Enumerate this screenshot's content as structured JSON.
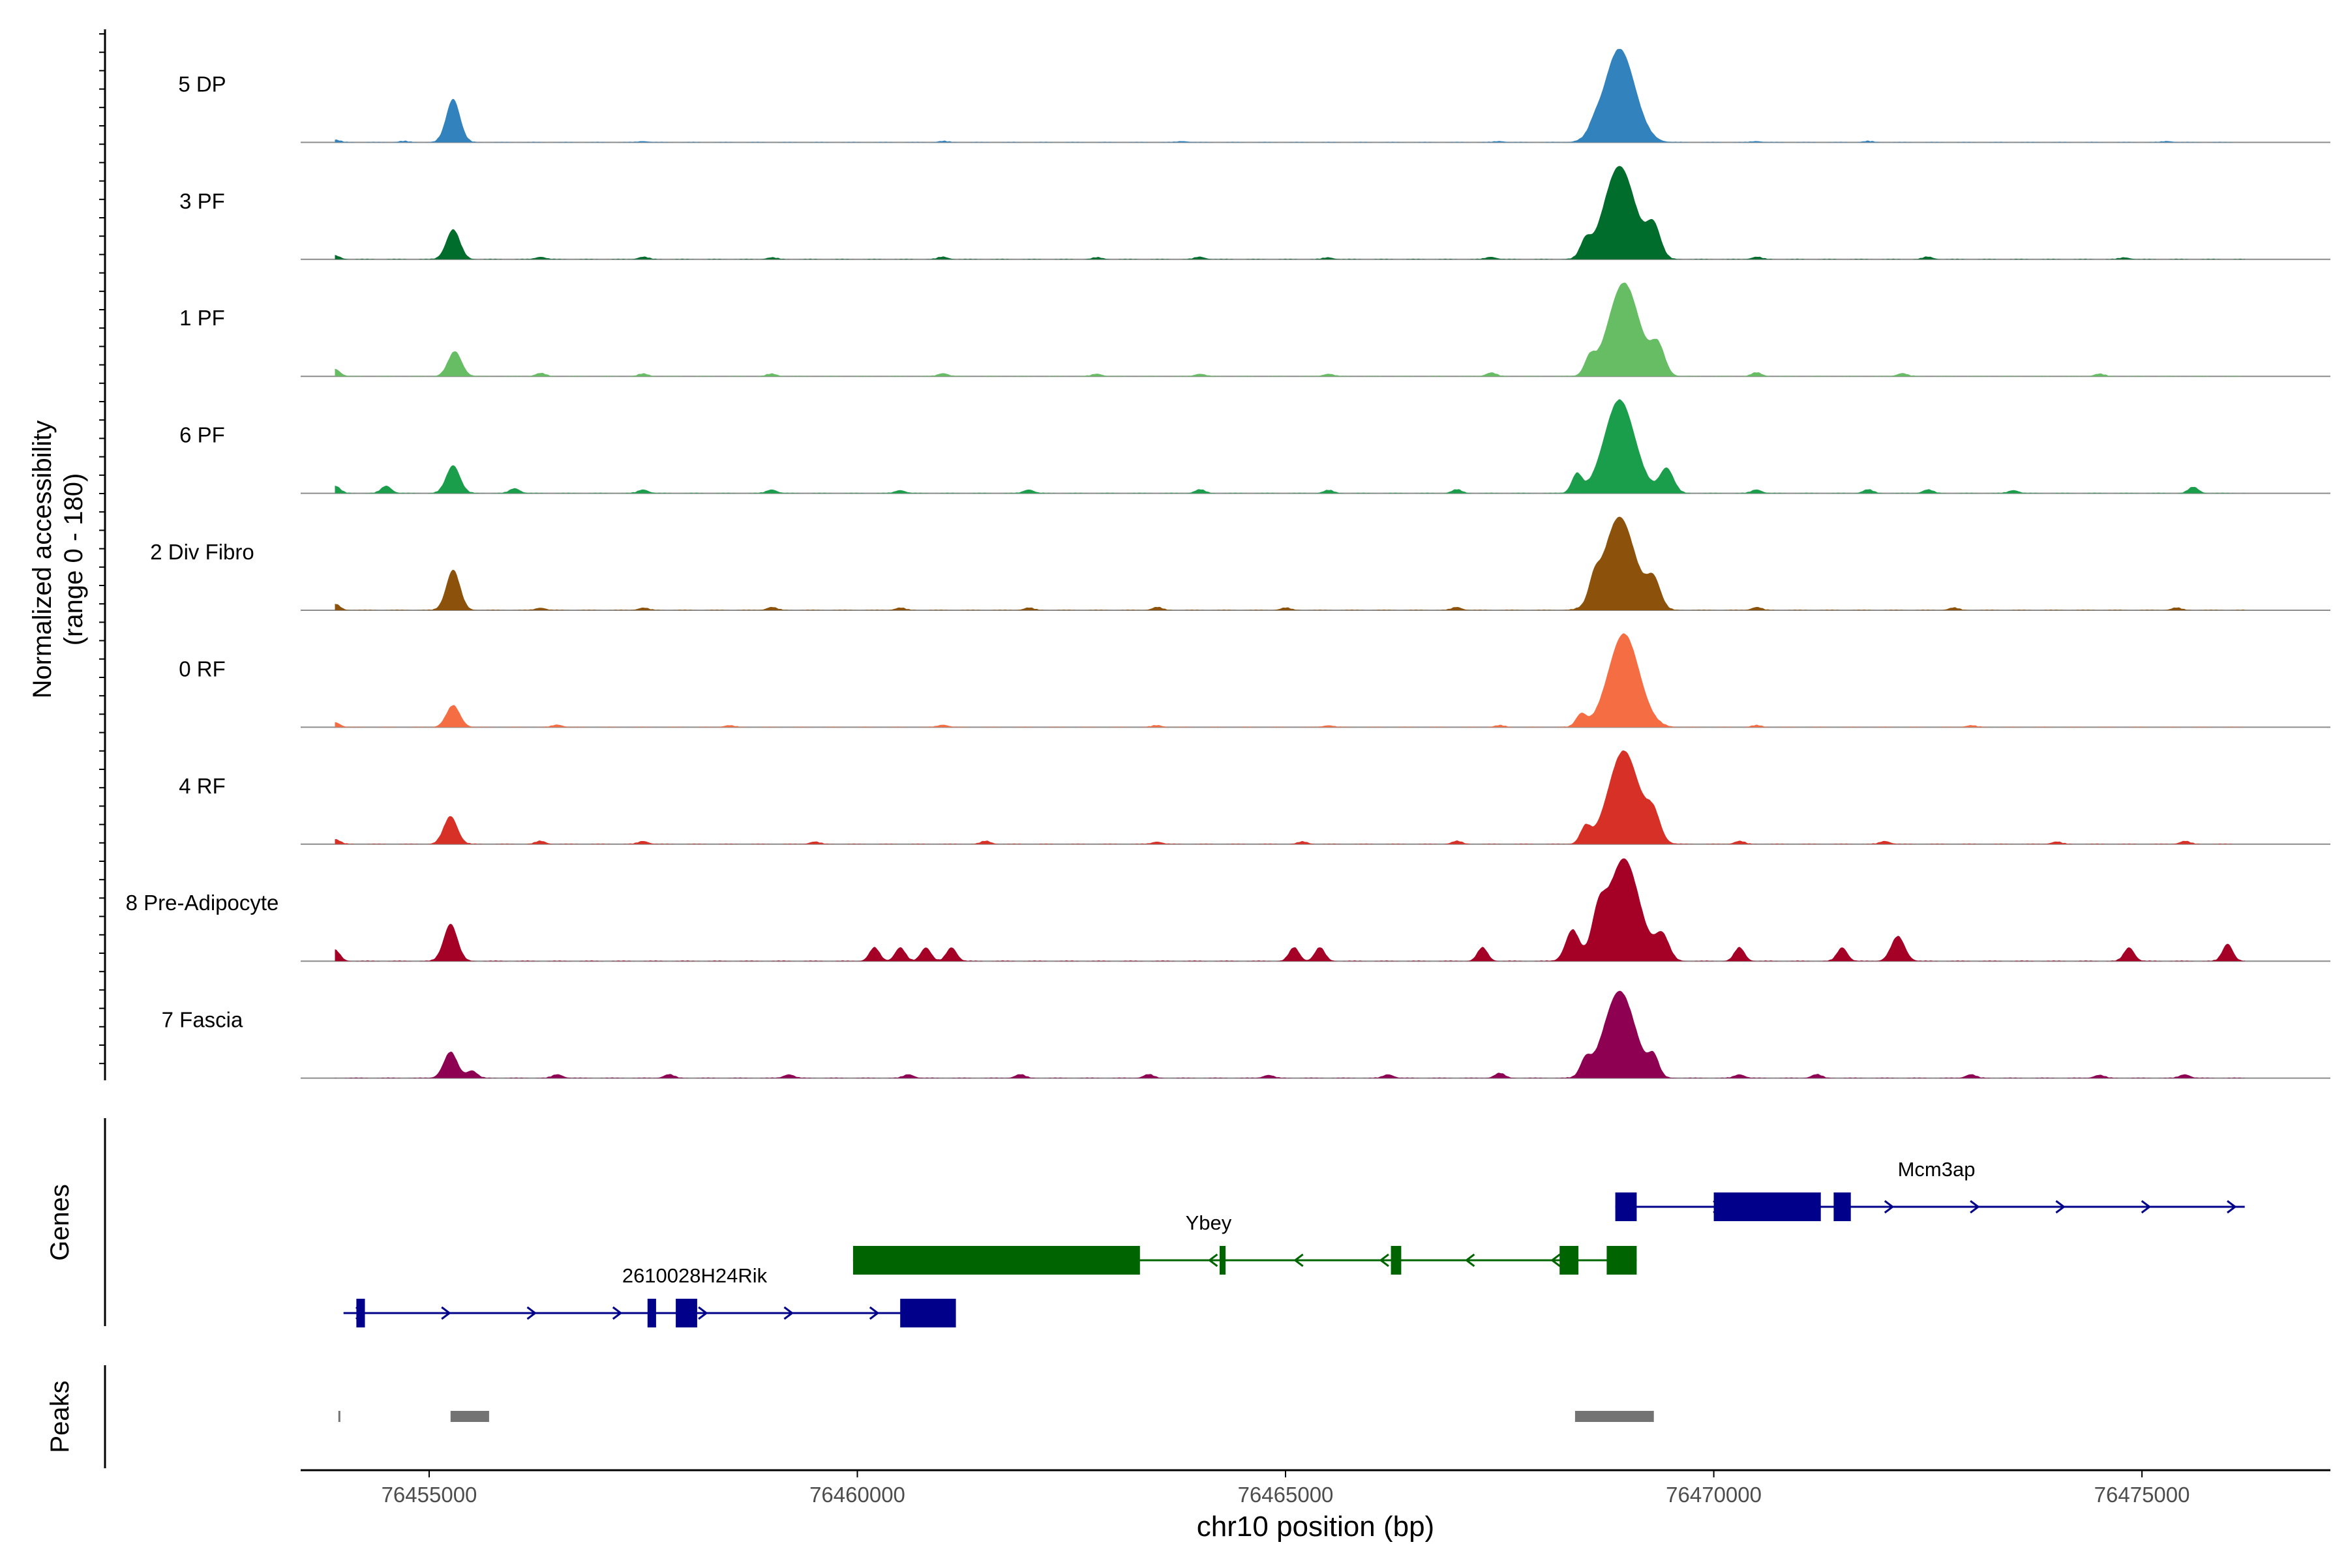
{
  "chart_data": {
    "type": "area",
    "title": "",
    "y_axis_title_line1": "Normalized accessibility",
    "y_axis_title_line2": "(range 0 - 180)",
    "ylim": [
      0,
      180
    ],
    "xlabel": "chr10 position (bp)",
    "xlim": [
      76453500,
      76477200
    ],
    "x_ticks": [
      76455000,
      76460000,
      76465000,
      76470000,
      76475000
    ],
    "x_tick_labels": [
      "76455000",
      "76460000",
      "76465000",
      "76470000",
      "76475000"
    ],
    "baseline_color": "#8c8c8c",
    "tracks": [
      {
        "name": "5 DP",
        "color": "#3182bd",
        "peaks": [
          [
            76453900,
            4
          ],
          [
            76454700,
            2
          ],
          [
            76455280,
            70
          ],
          [
            76457500,
            2
          ],
          [
            76461000,
            2
          ],
          [
            76463800,
            2
          ],
          [
            76467500,
            2
          ],
          [
            76468600,
            10
          ],
          [
            76468900,
            150
          ],
          [
            76470500,
            2
          ],
          [
            76471800,
            2
          ],
          [
            76475300,
            2
          ]
        ]
      },
      {
        "name": "3 PF",
        "color": "#006d2c",
        "peaks": [
          [
            76453900,
            6
          ],
          [
            76455280,
            48
          ],
          [
            76456300,
            4
          ],
          [
            76457500,
            4
          ],
          [
            76459000,
            3
          ],
          [
            76461000,
            4
          ],
          [
            76462800,
            3
          ],
          [
            76464000,
            4
          ],
          [
            76465500,
            3
          ],
          [
            76467400,
            4
          ],
          [
            76468500,
            25
          ],
          [
            76468900,
            150
          ],
          [
            76469300,
            50
          ],
          [
            76470500,
            4
          ],
          [
            76472500,
            4
          ],
          [
            76474800,
            3
          ]
        ]
      },
      {
        "name": "1 PF",
        "color": "#66bd63",
        "peaks": [
          [
            76453900,
            12
          ],
          [
            76455300,
            40
          ],
          [
            76456300,
            5
          ],
          [
            76457500,
            4
          ],
          [
            76459000,
            4
          ],
          [
            76461000,
            5
          ],
          [
            76462800,
            4
          ],
          [
            76464000,
            4
          ],
          [
            76465500,
            4
          ],
          [
            76467400,
            6
          ],
          [
            76468550,
            25
          ],
          [
            76468950,
            150
          ],
          [
            76469350,
            45
          ],
          [
            76470500,
            6
          ],
          [
            76472200,
            5
          ],
          [
            76474500,
            4
          ]
        ]
      },
      {
        "name": "6 PF",
        "color": "#1b9e4b",
        "peaks": [
          [
            76453900,
            12
          ],
          [
            76454500,
            12
          ],
          [
            76455280,
            45
          ],
          [
            76456000,
            8
          ],
          [
            76457500,
            6
          ],
          [
            76459000,
            6
          ],
          [
            76460500,
            5
          ],
          [
            76462000,
            6
          ],
          [
            76464000,
            6
          ],
          [
            76465500,
            5
          ],
          [
            76467000,
            6
          ],
          [
            76468400,
            30
          ],
          [
            76468900,
            150
          ],
          [
            76469450,
            40
          ],
          [
            76470500,
            6
          ],
          [
            76471800,
            6
          ],
          [
            76472500,
            6
          ],
          [
            76473500,
            5
          ],
          [
            76475600,
            10
          ]
        ]
      },
      {
        "name": "2 Div Fibro",
        "color": "#8c510a",
        "peaks": [
          [
            76453900,
            10
          ],
          [
            76455280,
            65
          ],
          [
            76456300,
            4
          ],
          [
            76457500,
            4
          ],
          [
            76459000,
            5
          ],
          [
            76460500,
            4
          ],
          [
            76462000,
            4
          ],
          [
            76463500,
            5
          ],
          [
            76465000,
            4
          ],
          [
            76467000,
            5
          ],
          [
            76468600,
            30
          ],
          [
            76468900,
            150
          ],
          [
            76469300,
            45
          ],
          [
            76470500,
            5
          ],
          [
            76472800,
            4
          ],
          [
            76475400,
            4
          ]
        ]
      },
      {
        "name": "0 RF",
        "color": "#f46d43",
        "peaks": [
          [
            76453900,
            8
          ],
          [
            76455280,
            35
          ],
          [
            76456500,
            4
          ],
          [
            76458500,
            3
          ],
          [
            76461000,
            4
          ],
          [
            76463500,
            3
          ],
          [
            76465500,
            3
          ],
          [
            76467500,
            3
          ],
          [
            76468450,
            20
          ],
          [
            76468950,
            150
          ],
          [
            76470500,
            3
          ],
          [
            76473000,
            3
          ]
        ]
      },
      {
        "name": "4 RF",
        "color": "#d73027",
        "peaks": [
          [
            76453900,
            8
          ],
          [
            76455250,
            45
          ],
          [
            76456300,
            5
          ],
          [
            76457500,
            5
          ],
          [
            76459500,
            4
          ],
          [
            76461500,
            5
          ],
          [
            76463500,
            4
          ],
          [
            76465200,
            4
          ],
          [
            76467000,
            5
          ],
          [
            76468500,
            25
          ],
          [
            76468950,
            150
          ],
          [
            76469300,
            40
          ],
          [
            76470300,
            5
          ],
          [
            76472000,
            5
          ],
          [
            76474000,
            4
          ],
          [
            76475500,
            5
          ]
        ]
      },
      {
        "name": "8 Pre-Adipocyte",
        "color": "#a50026",
        "peaks": [
          [
            76453900,
            18
          ],
          [
            76455250,
            60
          ],
          [
            76460200,
            22
          ],
          [
            76460500,
            22
          ],
          [
            76460800,
            22
          ],
          [
            76461100,
            22
          ],
          [
            76465100,
            22
          ],
          [
            76465400,
            22
          ],
          [
            76467300,
            22
          ],
          [
            76468350,
            50
          ],
          [
            76468650,
            60
          ],
          [
            76468950,
            165
          ],
          [
            76469400,
            40
          ],
          [
            76470300,
            22
          ],
          [
            76471500,
            22
          ],
          [
            76472150,
            40
          ],
          [
            76474850,
            22
          ],
          [
            76476000,
            28
          ]
        ]
      },
      {
        "name": "7 Fascia",
        "color": "#8e0152",
        "peaks": [
          [
            76455250,
            42
          ],
          [
            76455500,
            12
          ],
          [
            76456500,
            6
          ],
          [
            76457800,
            6
          ],
          [
            76459200,
            6
          ],
          [
            76460600,
            6
          ],
          [
            76461900,
            6
          ],
          [
            76463400,
            6
          ],
          [
            76464800,
            5
          ],
          [
            76466200,
            6
          ],
          [
            76467500,
            8
          ],
          [
            76468500,
            25
          ],
          [
            76468900,
            140
          ],
          [
            76469300,
            30
          ],
          [
            76470300,
            6
          ],
          [
            76471200,
            6
          ],
          [
            76473000,
            6
          ],
          [
            76474500,
            5
          ],
          [
            76475500,
            6
          ]
        ]
      }
    ],
    "genes_label": "Genes",
    "genes": [
      {
        "name": "Mcm3ap",
        "strand": "+",
        "color": "#00008b",
        "start": 76468850,
        "end": 76476200,
        "exons": [
          [
            76468850,
            76469100
          ],
          [
            76470000,
            76471250
          ],
          [
            76471400,
            76471600
          ]
        ]
      },
      {
        "name": "Ybey",
        "strand": "-",
        "color": "#006400",
        "start": 76459950,
        "end": 76469100,
        "exons": [
          [
            76459950,
            76463300
          ],
          [
            76464230,
            76464300
          ],
          [
            76466230,
            76466350
          ],
          [
            76468200,
            76468420
          ],
          [
            76468750,
            76469100
          ]
        ]
      },
      {
        "name": "2610028H24Rik",
        "strand": "+",
        "color": "#00008b",
        "start": 76454000,
        "end": 76461150,
        "exons": [
          [
            76454150,
            76454250
          ],
          [
            76457550,
            76457650
          ],
          [
            76457880,
            76458130
          ],
          [
            76460500,
            76461150
          ]
        ]
      }
    ],
    "peaks_label": "Peaks",
    "peaks_color": "#737373",
    "peak_regions": [
      [
        76453940,
        76453960
      ],
      [
        76455250,
        76455700
      ],
      [
        76468380,
        76469300
      ]
    ]
  }
}
